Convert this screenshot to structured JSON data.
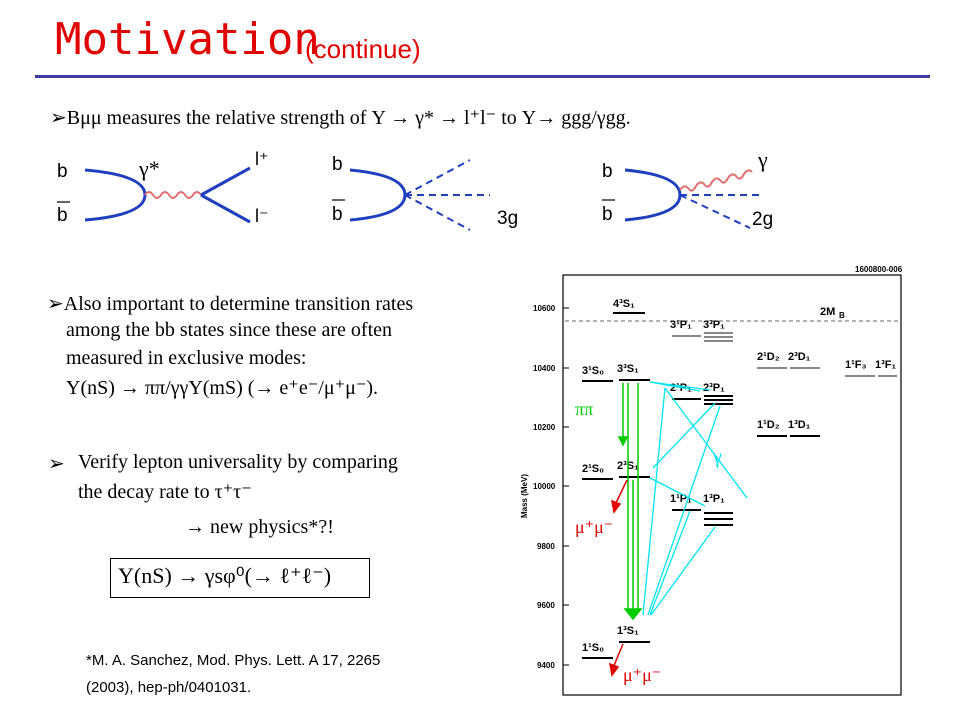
{
  "title": {
    "main": "Motivation",
    "sub": "(continue)"
  },
  "bullets": {
    "b1": "➢Bμμ measures the relative strength of  Υ → γ* → l⁺l⁻   to  Υ→ ggg/γgg.",
    "b2_l1": "➢Also important to determine transition rates",
    "b2_l2": "among the bb states since these are often",
    "b2_l3": "measured in exclusive modes:",
    "b2_l4": "Υ(nS) → ππ/γγΥ(mS) (→ e⁺e⁻/μ⁺μ⁻).",
    "b3_marker": "➢",
    "b3_l1": "Verify lepton universality by comparing",
    "b3_l2": "the decay rate to τ⁺τ⁻",
    "b3_l3": "→ new physics*?!",
    "equation": "Υ(nS) → γsφ⁰(→ ℓ⁺ℓ⁻)"
  },
  "reference": {
    "l1": "*M. A. Sanchez, Mod. Phys. Lett. A 17, 2265",
    "l2": "(2003), hep-ph/0401031."
  },
  "feynman": {
    "d1": {
      "b": "b",
      "bbar": "b",
      "photon": "γ*",
      "lplus": "l⁺",
      "lminus": "l⁻"
    },
    "d2": {
      "b": "b",
      "bbar": "b",
      "label": "3g"
    },
    "d3": {
      "b": "b",
      "bbar": "b",
      "photon": "γ",
      "label": "2g"
    }
  },
  "level_diagram": {
    "code": "1600800-006",
    "y_axis_label": "Mass (MeV)",
    "y_ticks": [
      "10600",
      "10400",
      "10200",
      "10000",
      "9800",
      "9600",
      "9400"
    ],
    "threshold_label": "2M",
    "threshold_sub": "B",
    "state_labels": [
      "4³S₁",
      "3¹P₁",
      "3³P₁",
      "2¹D₂",
      "2³D₁",
      "1¹F₃",
      "1³F₁",
      "3¹S₀",
      "3³S₁",
      "2¹P₁",
      "2³P₁",
      "1¹D₂",
      "1³D₁",
      "2¹S₀",
      "2³S₁",
      "1¹P₁",
      "1³P₁",
      "1¹S₀",
      "1³S₁"
    ],
    "annotations": {
      "pipi": "ππ",
      "gamma": "γ",
      "mumu1": "μ⁺μ⁻",
      "mumu2": "μ⁺μ⁻"
    },
    "colors": {
      "pipi": "#00cc00",
      "gamma": "#00e5ee",
      "mumu": "#e00000"
    }
  }
}
